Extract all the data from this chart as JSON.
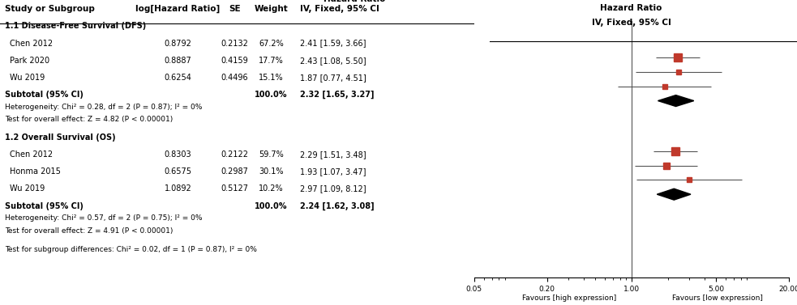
{
  "header_col": "Study or Subgroup",
  "header_loghr": "log[Hazard Ratio]",
  "header_se": "SE",
  "header_weight": "Weight",
  "header_iv": "IV, Fixed, 95% CI",
  "header_hr": "Hazard Ratio",
  "group1_title": "1.1 Disease-Free Survival (DFS)",
  "group1_studies": [
    "Chen 2012",
    "Park 2020",
    "Wu 2019"
  ],
  "group1_loghr": [
    0.8792,
    0.8887,
    0.6254
  ],
  "group1_se": [
    0.2132,
    0.4159,
    0.4496
  ],
  "group1_weight": [
    "67.2%",
    "17.7%",
    "15.1%"
  ],
  "group1_hr_ci": [
    "2.41 [1.59, 3.66]",
    "2.43 [1.08, 5.50]",
    "1.87 [0.77, 4.51]"
  ],
  "group1_hr": [
    2.41,
    2.43,
    1.87
  ],
  "group1_ci_low": [
    1.59,
    1.08,
    0.77
  ],
  "group1_ci_high": [
    3.66,
    5.5,
    4.51
  ],
  "group1_weight_val": [
    67.2,
    17.7,
    15.1
  ],
  "group1_subtotal_label": "Subtotal (95% CI)",
  "group1_subtotal_weight": "100.0%",
  "group1_subtotal_ci": "2.32 [1.65, 3.27]",
  "group1_subtotal_hr": 2.32,
  "group1_subtotal_low": 1.65,
  "group1_subtotal_high": 3.27,
  "group1_het": "Heterogeneity: Chi² = 0.28, df = 2 (P = 0.87); I² = 0%",
  "group1_test": "Test for overall effect: Z = 4.82 (P < 0.00001)",
  "group2_title": "1.2 Overall Survival (OS)",
  "group2_studies": [
    "Chen 2012",
    "Honma 2015",
    "Wu 2019"
  ],
  "group2_loghr": [
    0.8303,
    0.6575,
    1.0892
  ],
  "group2_se": [
    0.2122,
    0.2987,
    0.5127
  ],
  "group2_weight": [
    "59.7%",
    "30.1%",
    "10.2%"
  ],
  "group2_hr_ci": [
    "2.29 [1.51, 3.48]",
    "1.93 [1.07, 3.47]",
    "2.97 [1.09, 8.12]"
  ],
  "group2_hr": [
    2.29,
    1.93,
    2.97
  ],
  "group2_ci_low": [
    1.51,
    1.07,
    1.09
  ],
  "group2_ci_high": [
    3.48,
    3.47,
    8.12
  ],
  "group2_weight_val": [
    59.7,
    30.1,
    10.2
  ],
  "group2_subtotal_label": "Subtotal (95% CI)",
  "group2_subtotal_weight": "100.0%",
  "group2_subtotal_ci": "2.24 [1.62, 3.08]",
  "group2_subtotal_hr": 2.24,
  "group2_subtotal_low": 1.62,
  "group2_subtotal_high": 3.08,
  "group2_het": "Heterogeneity: Chi² = 0.57, df = 2 (P = 0.75); I² = 0%",
  "group2_test": "Test for overall effect: Z = 4.91 (P < 0.00001)",
  "footer": "Test for subgroup differences: Chi² = 0.02, df = 1 (P = 0.87), I² = 0%",
  "xscale_ticks": [
    0.05,
    0.2,
    1,
    5,
    20
  ],
  "xscale_label_left": "Favours [high expression]",
  "xscale_label_right": "Favours [low expression]",
  "xmin": 0.05,
  "xmax": 20,
  "square_color": "#C0392B",
  "diamond_color": "#000000",
  "line_color": "#555555",
  "bg_color": "#FFFFFF",
  "text_color": "#000000"
}
